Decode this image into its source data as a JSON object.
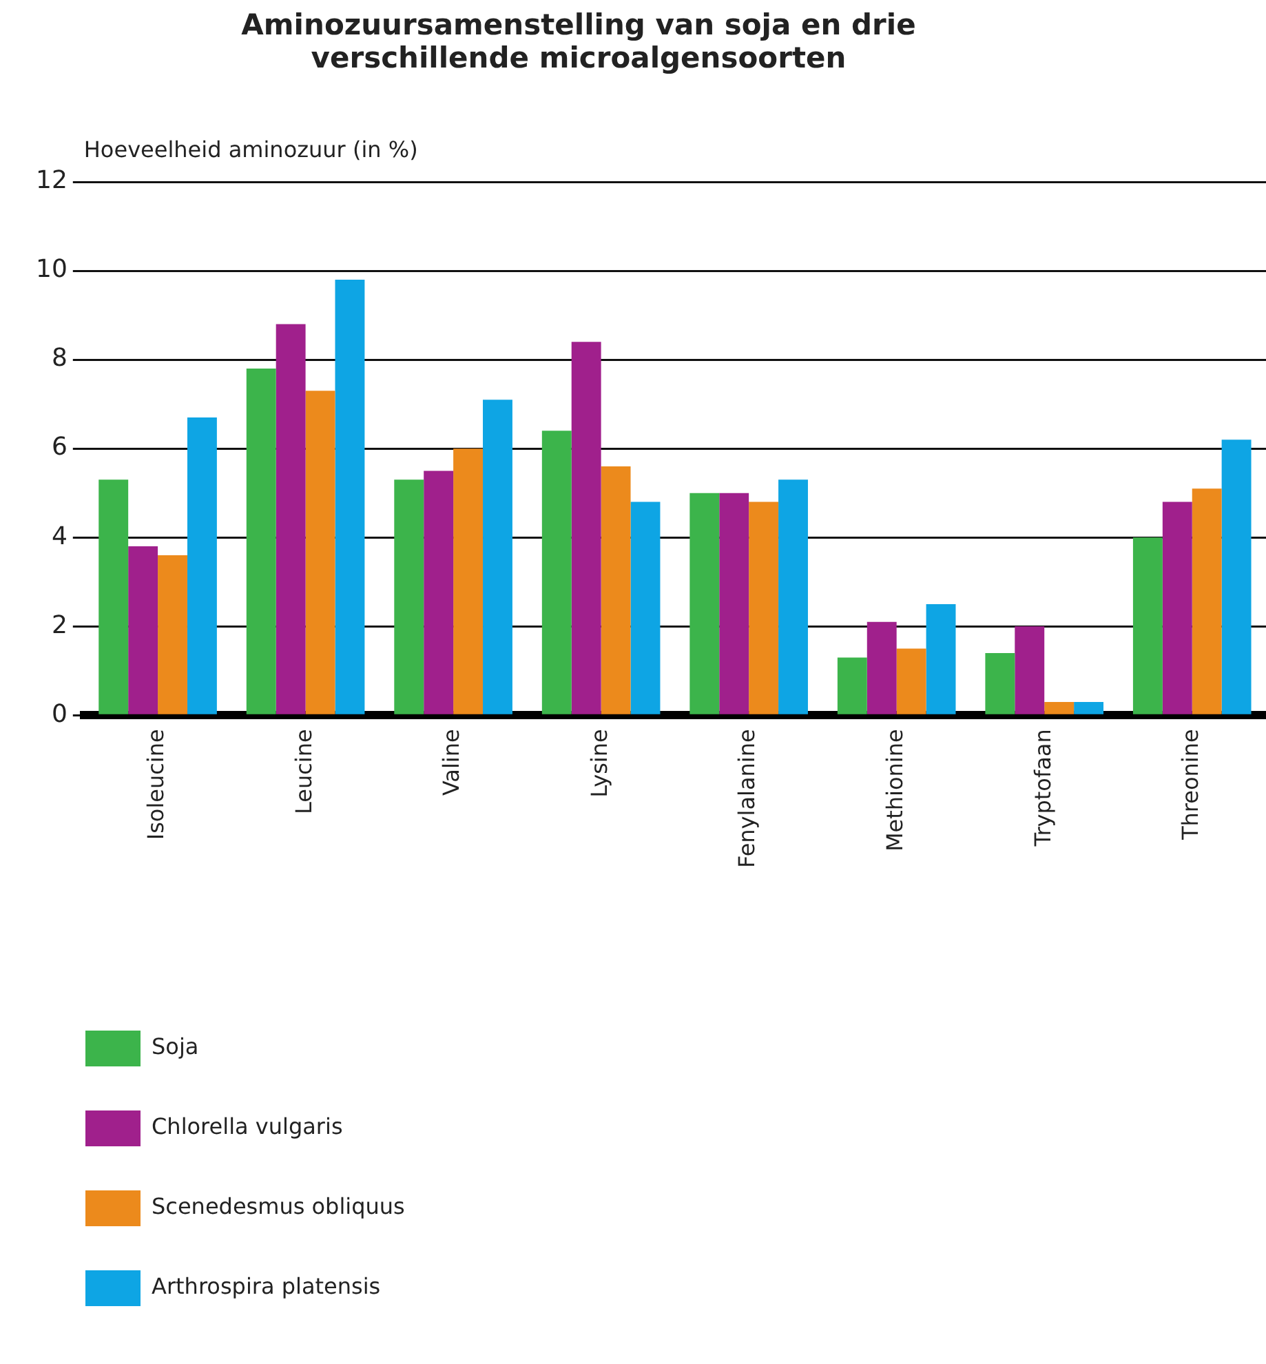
{
  "chart_data": {
    "type": "bar",
    "title": "Aminozuursamenstelling van soja en drie verschillende microalgensoorten",
    "ylabel": "Hoeveelheid aminozuur (in %)",
    "categories": [
      "Isoleucine",
      "Leucine",
      "Valine",
      "Lysine",
      "Fenylalanine",
      "Methionine",
      "Tryptofaan",
      "Threonine"
    ],
    "series": [
      {
        "name": "Soja",
        "color": "#3cb44b",
        "values": [
          5.3,
          7.8,
          5.3,
          6.4,
          5.0,
          1.3,
          1.4,
          4.0
        ]
      },
      {
        "name": "Chlorella vulgaris",
        "color": "#a0208c",
        "values": [
          3.8,
          8.8,
          5.5,
          8.4,
          5.0,
          2.1,
          2.0,
          4.8
        ]
      },
      {
        "name": "Scenedesmus obliquus",
        "color": "#ec8a1c",
        "values": [
          3.6,
          7.3,
          6.0,
          5.6,
          4.8,
          1.5,
          0.3,
          5.1
        ]
      },
      {
        "name": "Arthrospira platensis",
        "color": "#0ea5e4",
        "values": [
          6.7,
          9.8,
          7.1,
          4.8,
          5.3,
          2.5,
          0.3,
          6.2
        ]
      }
    ],
    "ylim": [
      0,
      12
    ],
    "yticks": [
      0,
      2,
      4,
      6,
      8,
      10,
      12
    ],
    "grid": "y",
    "legend": "bottom left"
  }
}
